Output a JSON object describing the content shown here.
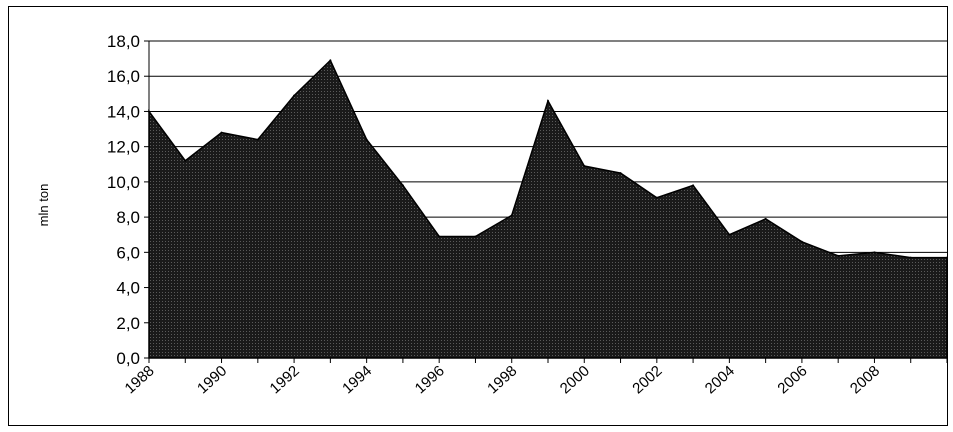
{
  "chart_data": {
    "type": "area",
    "title": "",
    "xlabel": "",
    "ylabel": "mln ton",
    "x": [
      1988,
      1989,
      1990,
      1991,
      1992,
      1993,
      1994,
      1995,
      1996,
      1997,
      1998,
      1999,
      2000,
      2001,
      2002,
      2003,
      2004,
      2005,
      2006,
      2007,
      2008,
      2009,
      2010
    ],
    "values": [
      14.0,
      11.2,
      12.8,
      12.4,
      14.9,
      16.9,
      12.4,
      9.8,
      6.9,
      6.9,
      8.1,
      14.6,
      10.9,
      10.5,
      9.1,
      9.8,
      7.0,
      7.9,
      6.6,
      5.8,
      6.0,
      5.7,
      5.7
    ],
    "ylim": [
      0,
      18
    ],
    "xlim": [
      1988,
      2010
    ],
    "y_ticks": [
      "0,0",
      "2,0",
      "4,0",
      "6,0",
      "8,0",
      "10,0",
      "12,0",
      "14,0",
      "16,0",
      "18,0"
    ],
    "x_ticks": [
      "1988",
      "1990",
      "1992",
      "1994",
      "1996",
      "1998",
      "2000",
      "2002",
      "2004",
      "2006",
      "2008"
    ],
    "grid": true,
    "legend": "none",
    "fill_color": "#1a1a1a",
    "line_color": "#000000"
  }
}
